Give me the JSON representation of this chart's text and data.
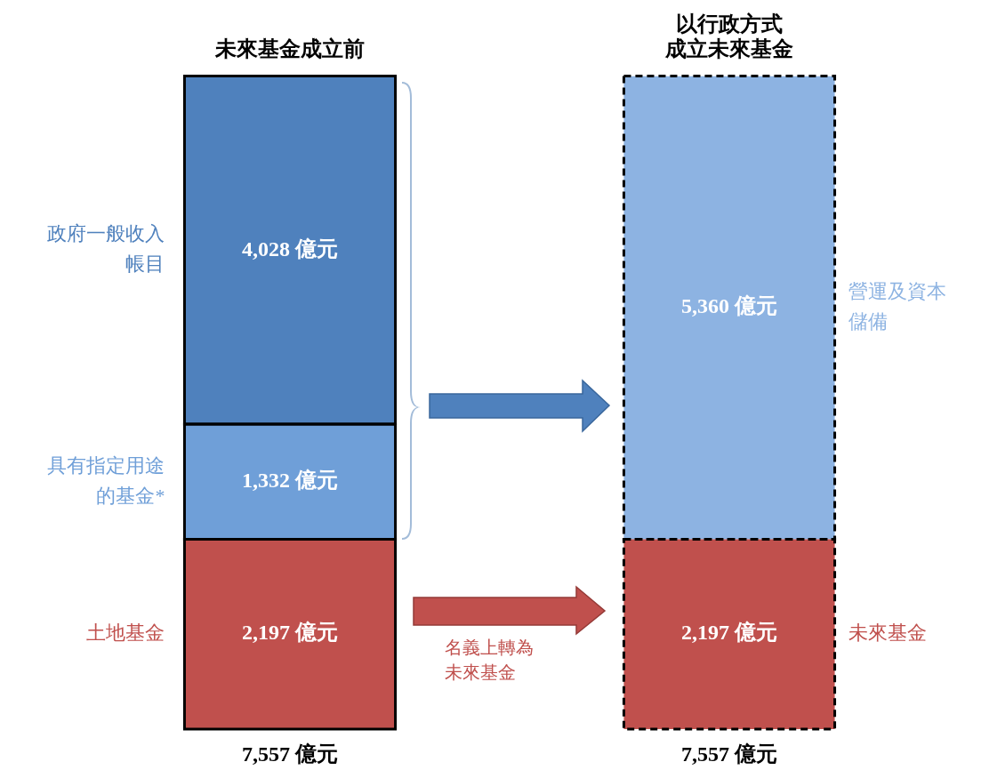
{
  "chart_data": {
    "type": "bar",
    "stacked": true,
    "categories": [
      "未來基金成立前",
      "以行政方式成立未來基金"
    ],
    "series": [
      {
        "name": "土地基金",
        "color": "#c0504d",
        "values": [
          2197,
          null
        ],
        "value_labels": [
          "2,197 億元",
          null
        ]
      },
      {
        "name": "具有指定用途的基金*",
        "color": "#6f9fd8",
        "values": [
          1332,
          null
        ],
        "value_labels": [
          "1,332 億元",
          null
        ]
      },
      {
        "name": "政府一般收入帳目",
        "color": "#4f81bd",
        "values": [
          4028,
          null
        ],
        "value_labels": [
          "4,028 億元",
          null
        ]
      },
      {
        "name": "未來基金",
        "color": "#c0504d",
        "values": [
          null,
          2197
        ],
        "value_labels": [
          null,
          "2,197 億元"
        ],
        "line_style": "dashed"
      },
      {
        "name": "營運及資本儲備",
        "color": "#8db3e2",
        "values": [
          null,
          5360
        ],
        "value_labels": [
          null,
          "5,360 億元"
        ],
        "line_style": "dashed"
      }
    ],
    "totals": [
      "7,557 億元",
      "7,557 億元"
    ],
    "annotations": [
      "名義上轉為未來基金"
    ],
    "legend": false,
    "grid": false
  }
}
